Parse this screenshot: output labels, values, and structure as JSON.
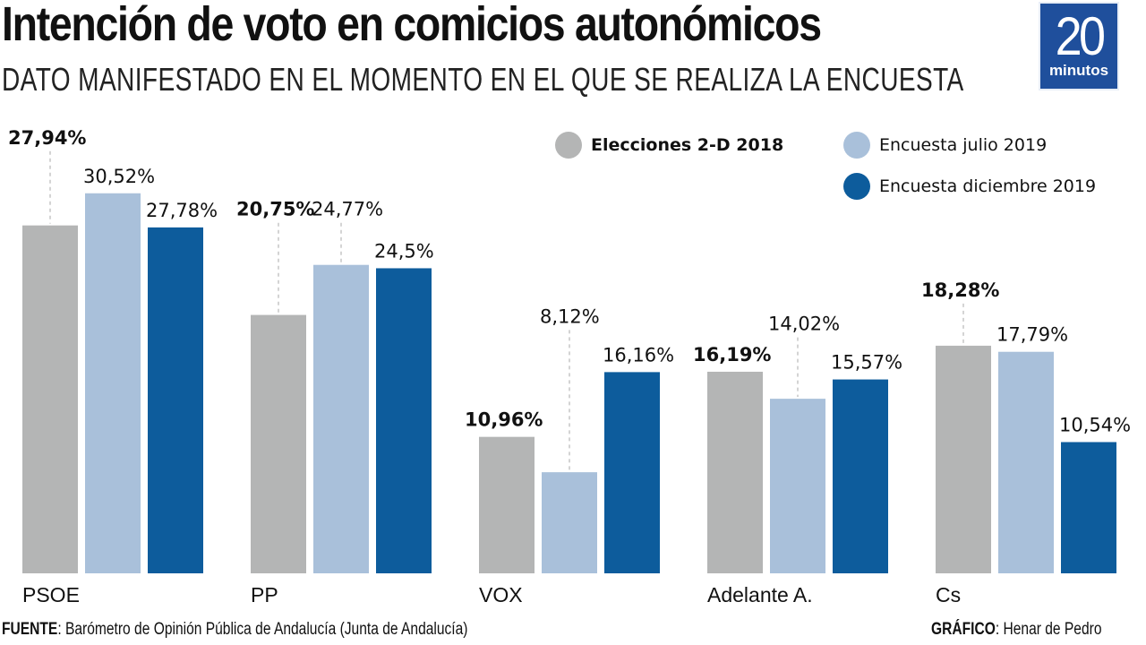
{
  "header": {
    "title": "Intención de voto en comicios autonómicos",
    "subtitle": "DATO MANIFESTADO EN EL MOMENTO EN EL QUE SE REALIZA LA ENCUESTA",
    "logo_number": "20",
    "logo_word": "minutos"
  },
  "legend": [
    {
      "label": "Elecciones 2-D 2018",
      "color": "#b4b5b5"
    },
    {
      "label": "Encuesta julio 2019",
      "color": "#a9c0da"
    },
    {
      "label": "Encuesta diciembre 2019",
      "color": "#0d5c9c"
    }
  ],
  "footer": {
    "source_label": "FUENTE",
    "source_text": ": Barómetro de Opinión Pública de Andalucía (Junta de Andalucía)",
    "credit_label": "GRÁFICO",
    "credit_text": ": Henar de Pedro"
  },
  "chart_data": {
    "type": "bar",
    "title": "Intención de voto en comicios autonómicos",
    "subtitle": "DATO MANIFESTADO EN EL MOMENTO EN EL QUE SE REALIZA LA ENCUESTA",
    "xlabel": "",
    "ylabel": "",
    "ylim": [
      0,
      32
    ],
    "grid": false,
    "legend_position": "top-right",
    "categories": [
      "PSOE",
      "PP",
      "VOX",
      "Adelante A.",
      "Cs"
    ],
    "series": [
      {
        "name": "Elecciones 2-D 2018",
        "color": "#b4b5b5",
        "values": [
          27.94,
          20.75,
          10.96,
          16.19,
          18.28
        ],
        "labels": [
          "27,94%",
          "20,75%",
          "10,96%",
          "16,19%",
          "18,28%"
        ]
      },
      {
        "name": "Encuesta julio 2019",
        "color": "#a9c0da",
        "values": [
          30.52,
          24.77,
          8.12,
          14.02,
          17.79
        ],
        "labels": [
          "30,52%",
          "24,77%",
          "8,12%",
          "14,02%",
          "17,79%"
        ]
      },
      {
        "name": "Encuesta diciembre 2019",
        "color": "#0d5c9c",
        "values": [
          27.78,
          24.5,
          16.16,
          15.57,
          10.54
        ],
        "labels": [
          "27,78%",
          "24,5%",
          "16,16%",
          "15,57%",
          "10,54%"
        ]
      }
    ]
  }
}
